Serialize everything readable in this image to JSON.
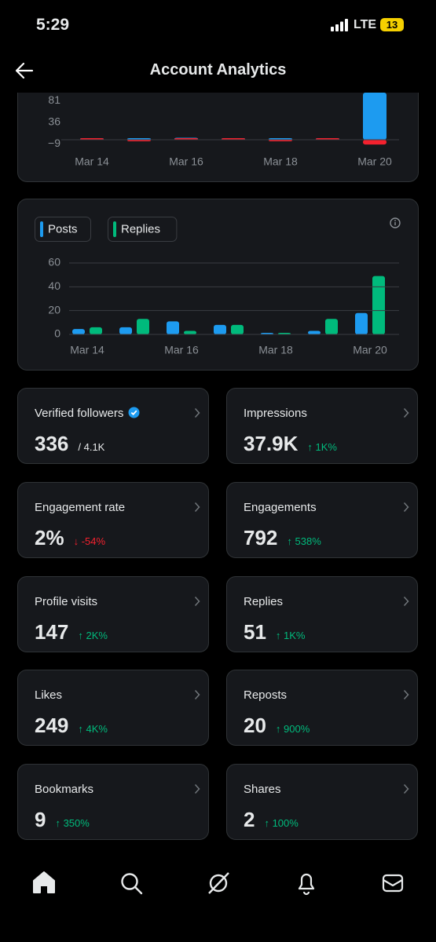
{
  "status_bar": {
    "time": "5:29",
    "network": "LTE",
    "battery": "13"
  },
  "header": {
    "title": "Account Analytics"
  },
  "chart_data": [
    {
      "type": "bar",
      "categories": [
        "Mar 14",
        null,
        "Mar 16",
        null,
        "Mar 18",
        null,
        "Mar 20"
      ],
      "series": [
        {
          "color": "#1d9bf0",
          "values": [
            0,
            0,
            4,
            0.5,
            0,
            1,
            98
          ]
        },
        {
          "color": "#f4212e",
          "values": [
            0,
            -1,
            0,
            0,
            -1,
            0,
            -10
          ]
        }
      ],
      "ylim": [
        -18,
        98
      ],
      "yticks": [
        81,
        36,
        {
          "value": -9,
          "label": "−9"
        }
      ],
      "grid": false,
      "stacked": true
    },
    {
      "type": "bar",
      "categories": [
        "Mar 14",
        null,
        "Mar 16",
        null,
        "Mar 18",
        null,
        "Mar 20"
      ],
      "series": [
        {
          "name": "Posts",
          "color": "#1d9bf0",
          "values": [
            4.5,
            6,
            11,
            8,
            0.5,
            3,
            18
          ]
        },
        {
          "name": "Replies",
          "color": "#00ba7c",
          "values": [
            6,
            13,
            3,
            8,
            1,
            13,
            49
          ]
        }
      ],
      "ylim": [
        0,
        60
      ],
      "yticks": [
        0,
        20,
        40,
        60
      ],
      "grid": true,
      "stacked": false
    }
  ],
  "stats": [
    {
      "label": "Verified followers",
      "value": "336",
      "note": "/ 4.1K",
      "verified": true
    },
    {
      "label": "Impressions",
      "value": "37.9K",
      "note": "↑ 1K%"
    },
    {
      "label": "Engagement rate",
      "value": "2%",
      "note": "↓ -54%"
    },
    {
      "label": "Engagements",
      "value": "792",
      "note": "↑ 538%"
    },
    {
      "label": "Profile visits",
      "value": "147",
      "note": "↑ 2K%"
    },
    {
      "label": "Replies",
      "value": "51",
      "note": "↑ 1K%"
    },
    {
      "label": "Likes",
      "value": "249",
      "note": "↑ 4K%"
    },
    {
      "label": "Reposts",
      "value": "20",
      "note": "↑ 900%"
    },
    {
      "label": "Bookmarks",
      "value": "9",
      "note": "↑ 350%"
    },
    {
      "label": "Shares",
      "value": "2",
      "note": "↑ 100%"
    }
  ]
}
